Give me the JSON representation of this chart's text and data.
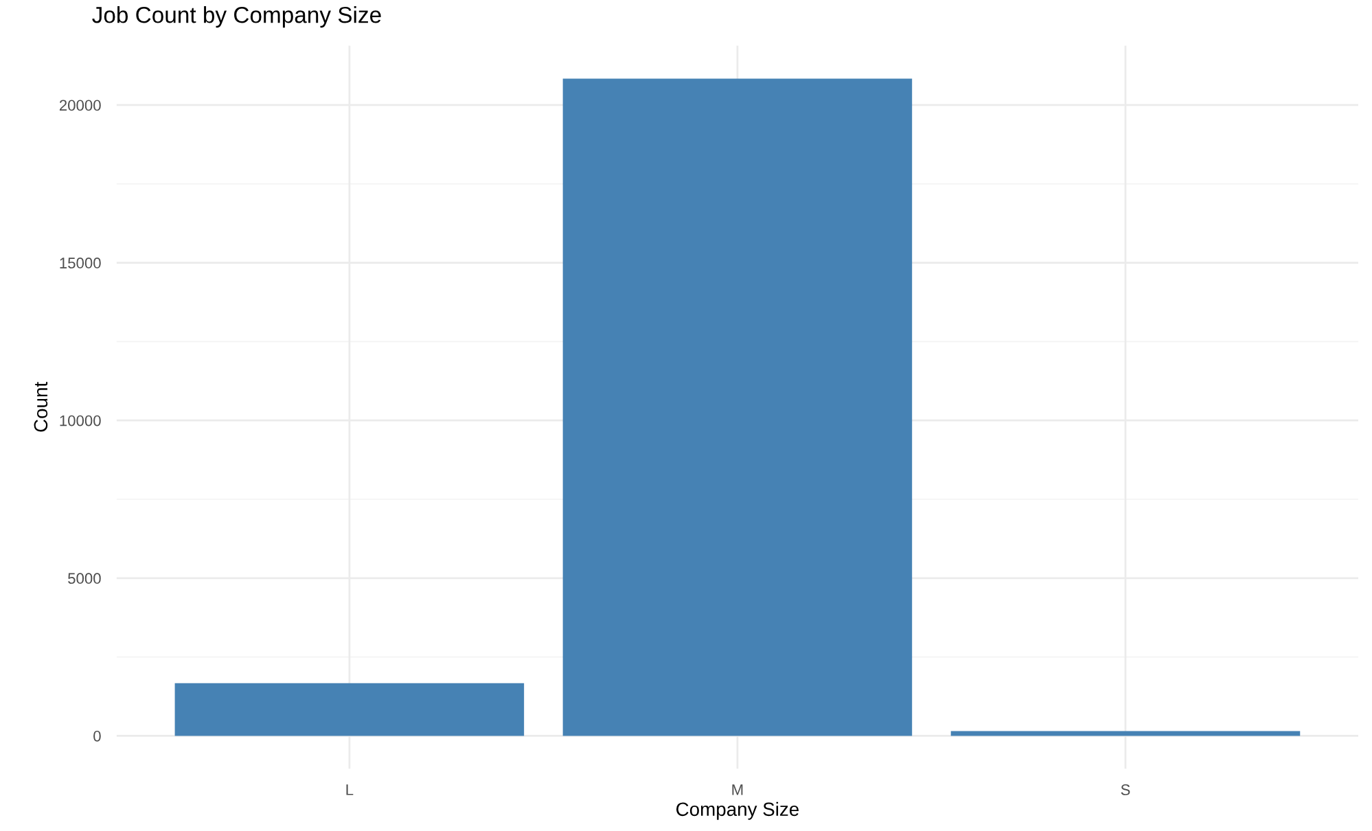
{
  "chart_data": {
    "type": "bar",
    "title": "Job Count by Company Size",
    "xlabel": "Company Size",
    "ylabel": "Count",
    "categories": [
      "L",
      "M",
      "S"
    ],
    "values": [
      1670,
      20840,
      150
    ],
    "color": "#4682b4",
    "ylim": [
      -1042,
      21882
    ],
    "yticks": [
      0,
      5000,
      10000,
      15000,
      20000
    ],
    "grid": true
  }
}
